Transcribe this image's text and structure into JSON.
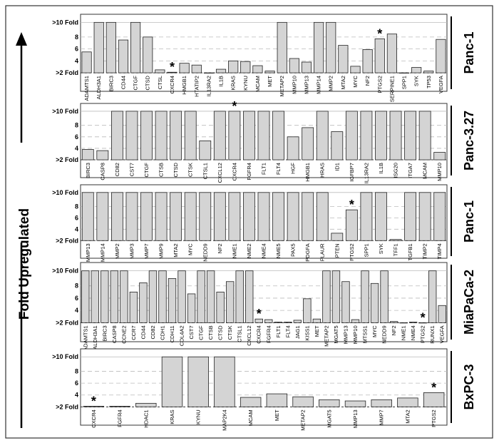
{
  "y_axis_label": "Fold Upregulated",
  "tick_labels": {
    "top": ">10 Fold",
    "mid": [
      "8",
      "6",
      "4"
    ],
    "base": ">2 Fold"
  },
  "colors": {
    "bar_fill": "#d4d4d4",
    "bar_stroke": "#222222",
    "grid": "#bbbbbb"
  },
  "chart_data": [
    {
      "type": "bar",
      "title": "Panc-1",
      "ylim": [
        0,
        10
      ],
      "categories": [
        "ADAMTS1",
        "ALDH3A1",
        "BIRC3",
        "CD44",
        "CTGF",
        "CTSD",
        "CTSL",
        "CXCR4",
        "HMGB1",
        "HTATIP2",
        "IL13RA2",
        "IL1B",
        "KRAS",
        "KYNU",
        "MCAM",
        "MET",
        "METAP2",
        "MMP10",
        "MMP13",
        "MMP14",
        "MMP2",
        "MTA2",
        "MYC",
        "NF2",
        "PTGS2",
        "SERPINE1",
        "SPP1",
        "SYK",
        "TP53",
        "VEGFA"
      ],
      "values": [
        5.5,
        10,
        10,
        7.5,
        10,
        8,
        2.5,
        2.1,
        3.6,
        3.3,
        2.0,
        2.6,
        4.0,
        3.9,
        3.2,
        2.3,
        10,
        4.4,
        3.8,
        10,
        10,
        6.6,
        3.1,
        5.9,
        7.7,
        8.5,
        2.0,
        2.9,
        2.3,
        7.6
      ],
      "starred": [
        "CXCR4",
        "PTGS2"
      ]
    },
    {
      "type": "bar",
      "title": "Panc-3.27",
      "ylim": [
        0,
        10
      ],
      "categories": [
        "BIRC3",
        "CASP8",
        "CD82",
        "CST7",
        "CTGF",
        "CTSB",
        "CTSD",
        "CTSK",
        "CTSL1",
        "CXCL12",
        "CXCR4",
        "FGFR4",
        "FLT1",
        "FLT4",
        "HGF",
        "HMGB1",
        "HRAS",
        "ID1",
        "IGFBP7",
        "IL13RA2",
        "IL1B",
        "ISG20",
        "ITGA7",
        "MCAM",
        "MMP10"
      ],
      "values": [
        3.8,
        3.6,
        10,
        10,
        10,
        10,
        10,
        10,
        5.3,
        10,
        10,
        10,
        10,
        10,
        6.0,
        7.6,
        10,
        6.9,
        10,
        10,
        10,
        10,
        10,
        10,
        3.3
      ],
      "starred": [
        "CXCR4"
      ]
    },
    {
      "type": "bar",
      "title": "Panc-1",
      "ylim": [
        0,
        10
      ],
      "categories": [
        "MMP13",
        "MMP14",
        "MMP2",
        "MMP3",
        "MMP7",
        "MMP9",
        "MTA2",
        "MYC",
        "NEDD9",
        "NF2",
        "NME1",
        "NME2",
        "NME4",
        "NME5",
        "PAX5",
        "PDGFA",
        "PLAUR",
        "PTEN",
        "PTGS2",
        "SPP1",
        "SYK",
        "TFF1",
        "TGFB1",
        "TIMP2",
        "TIMP4"
      ],
      "values": [
        10,
        10,
        10,
        10,
        10,
        10,
        10,
        10,
        10,
        10,
        10,
        10,
        10,
        10,
        10,
        10,
        10,
        3.3,
        7.4,
        10,
        10,
        2.2,
        10,
        10,
        10
      ],
      "starred": [
        "PTGS2"
      ]
    },
    {
      "type": "bar",
      "title": "MiaPaCa-2",
      "ylim": [
        0,
        10
      ],
      "categories": [
        "ADAMTS1",
        "ALDH3A1",
        "BIRC3",
        "CASP8",
        "CCNE2",
        "CCR7",
        "CD44",
        "CD82",
        "CDH1",
        "CDH11",
        "COL4A2",
        "CST7",
        "CTGF",
        "CTSB",
        "CTSD",
        "CTSK",
        "CTSL1",
        "CXCL12",
        "CXCR4",
        "FGFR4",
        "FLT1",
        "FLT4",
        "JAG1",
        "KISS1",
        "MET",
        "METAP2",
        "MGAT5",
        "MMP13",
        "MMP10",
        "MTSS1",
        "MYC",
        "NEDD9",
        "NF2",
        "NME1",
        "NME4",
        "PTGS2",
        "RUNX1",
        "VEGFA"
      ],
      "values": [
        10,
        10,
        10,
        10,
        10,
        7.0,
        8.5,
        10,
        10,
        9.2,
        10,
        6.7,
        10,
        10,
        7.0,
        8.7,
        10,
        10,
        2.6,
        2.5,
        2.1,
        2.1,
        2.4,
        5.9,
        2.6,
        10,
        10,
        8.7,
        2.5,
        10,
        8.4,
        10,
        2.2,
        2.0,
        2.1,
        2.0,
        10,
        4.8
      ],
      "starred": [
        "CXCR4",
        "PTGS2"
      ]
    },
    {
      "type": "bar",
      "title": "BxPC-3",
      "ylim": [
        0,
        10
      ],
      "categories": [
        "CXCR4",
        "FGFR4",
        "HDAC1",
        "KRAS",
        "KYNU",
        "MAP2K4",
        "MCAM",
        "MET",
        "METAP2",
        "MGAT5",
        "MMP13",
        "MMP7",
        "MTA2",
        "PTGS2"
      ],
      "values": [
        2.1,
        2.1,
        2.6,
        10,
        10,
        10,
        3.6,
        4.2,
        3.7,
        3.2,
        3.0,
        3.2,
        3.5,
        4.4
      ],
      "starred": [
        "CXCR4",
        "PTGS2"
      ]
    }
  ]
}
